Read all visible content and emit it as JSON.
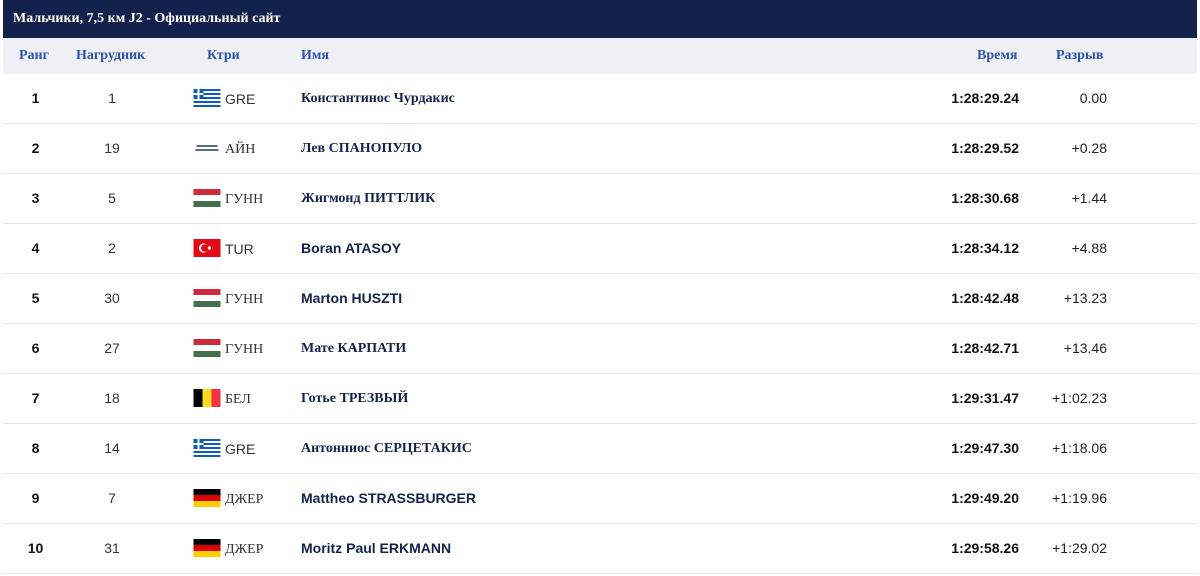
{
  "title": "Мальчики, 7,5 км J2 - Официальный сайт",
  "columns": {
    "rank": "Ранг",
    "bib": "Нагрудник",
    "country": "Ктри",
    "name": "Имя",
    "time": "Время",
    "gap": "Разрыв"
  },
  "rows": [
    {
      "rank": "1",
      "bib": "1",
      "flag": "greece-flag",
      "country": "GRE",
      "name": "Константинос Чурдакис",
      "time": "1:28:29.24",
      "gap": "0.00"
    },
    {
      "rank": "2",
      "bib": "19",
      "flag": "european-athletes-flag",
      "country": "АЙН",
      "name": "Лев СПАНОПУЛО",
      "time": "1:28:29.52",
      "gap": "+0.28"
    },
    {
      "rank": "3",
      "bib": "5",
      "flag": "hungary-flag",
      "country": "ГУНН",
      "name": "Жигмонд ПИТТЛИК",
      "time": "1:28:30.68",
      "gap": "+1.44"
    },
    {
      "rank": "4",
      "bib": "2",
      "flag": "turkey-flag",
      "country": "TUR",
      "name": "Boran ATASOY",
      "time": "1:28:34.12",
      "gap": "+4.88"
    },
    {
      "rank": "5",
      "bib": "30",
      "flag": "hungary-flag",
      "country": "ГУНН",
      "name": "Marton HUSZTI",
      "time": "1:28:42.48",
      "gap": "+13.23"
    },
    {
      "rank": "6",
      "bib": "27",
      "flag": "hungary-flag",
      "country": "ГУНН",
      "name": "Мате КАРПАТИ",
      "time": "1:28:42.71",
      "gap": "+13.46"
    },
    {
      "rank": "7",
      "bib": "18",
      "flag": "belgium-flag",
      "country": "БЕЛ",
      "name": "Готье ТРЕЗВЫЙ",
      "time": "1:29:31.47",
      "gap": "+1:02.23"
    },
    {
      "rank": "8",
      "bib": "14",
      "flag": "greece-flag",
      "country": "GRE",
      "name": "Антонниос СЕРЦЕТАКИС",
      "time": "1:29:47.30",
      "gap": "+1:18.06"
    },
    {
      "rank": "9",
      "bib": "7",
      "flag": "germany-flag",
      "country": "ДЖЕР",
      "name": "Mattheo STRASSBURGER",
      "time": "1:29:49.20",
      "gap": "+1:19.96"
    },
    {
      "rank": "10",
      "bib": "31",
      "flag": "germany-flag",
      "country": "ДЖЕР",
      "name": "Moritz Paul ERKMANN",
      "time": "1:29:58.26",
      "gap": "+1:29.02"
    }
  ],
  "colors": {
    "title_bg": "#13224d",
    "header_bg": "#eef0f6",
    "header_text": "#2c52b0",
    "name_text": "#13224d"
  }
}
